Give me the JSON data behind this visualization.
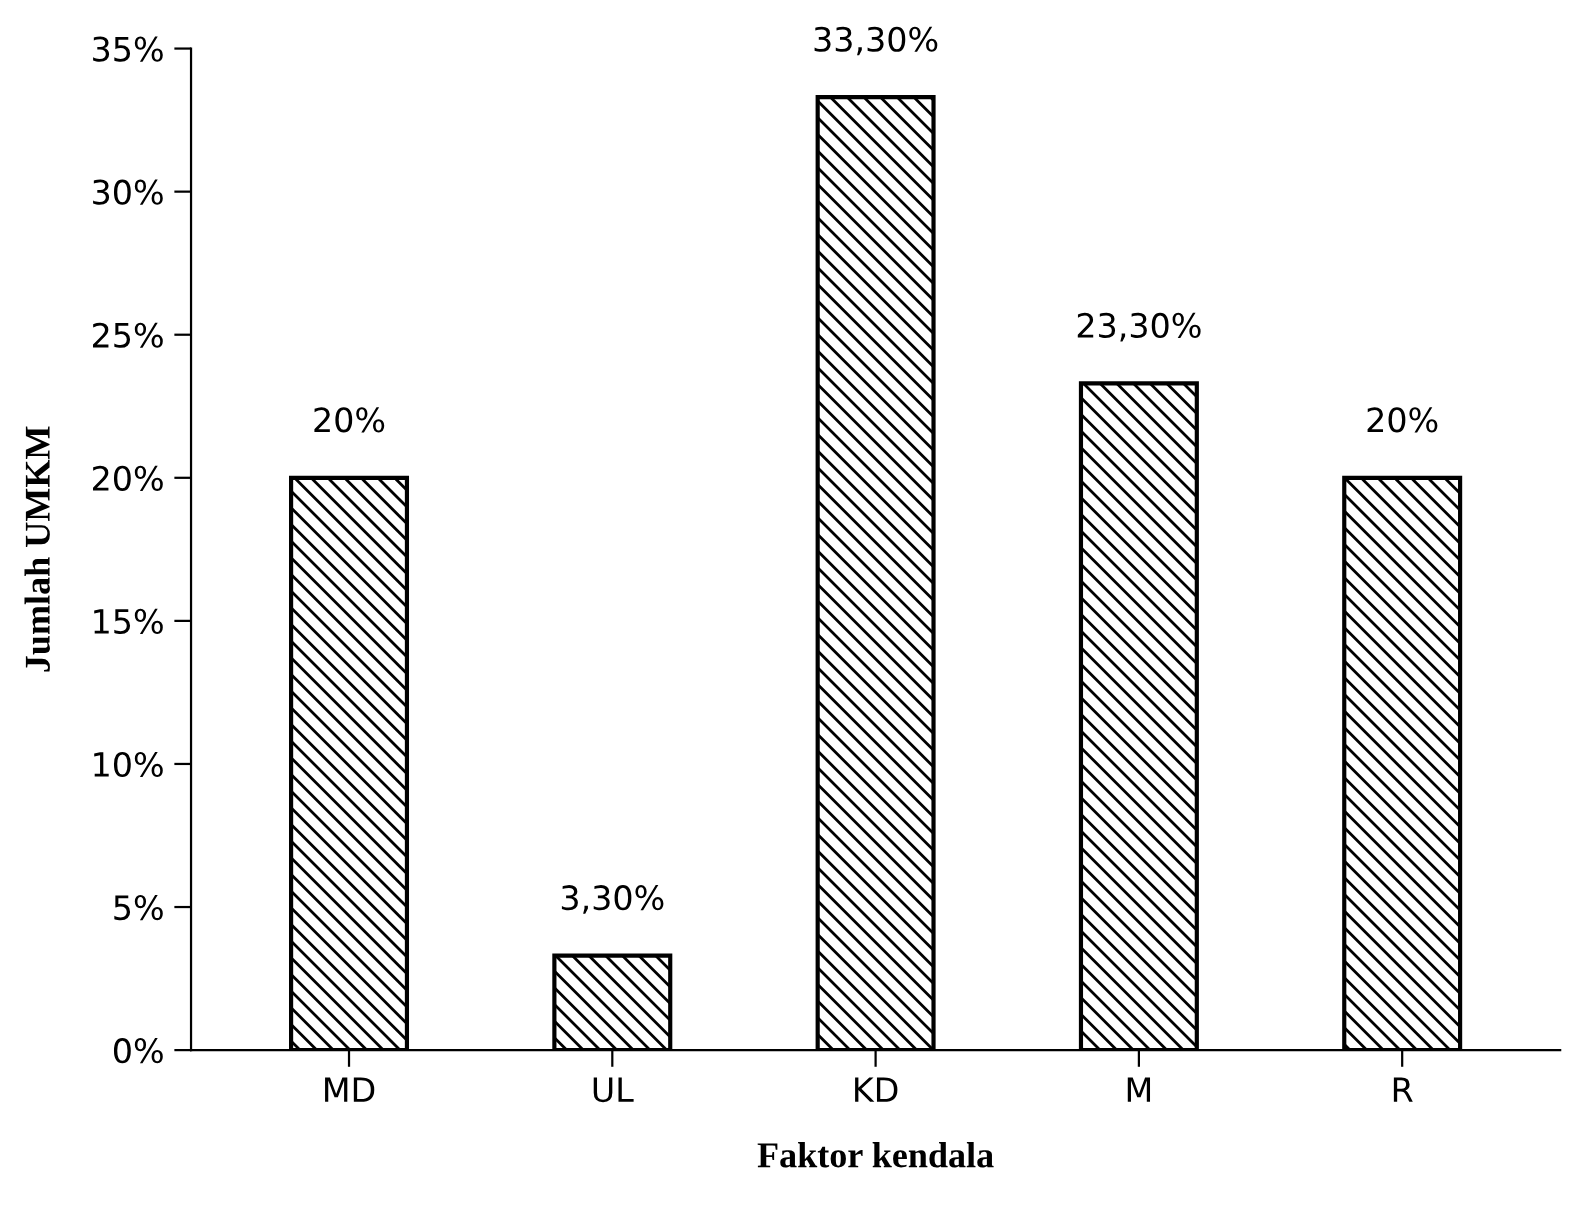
{
  "chart_data": {
    "type": "bar",
    "xlabel": "Faktor kendala",
    "ylabel": "Jumlah UMKM",
    "categories": [
      "MD",
      "UL",
      "KD",
      "M",
      "R"
    ],
    "values": [
      20,
      3.3,
      33.3,
      23.3,
      20
    ],
    "value_labels": [
      "20%",
      "3,30%",
      "33,30%",
      "23,30%",
      "20%"
    ],
    "color": "#000000",
    "ylim": [
      0,
      35
    ],
    "yticks": [
      {
        "value": 0,
        "label": "0%"
      },
      {
        "value": 5,
        "label": "5%"
      },
      {
        "value": 10,
        "label": "10%"
      },
      {
        "value": 15,
        "label": "15%"
      },
      {
        "value": 20,
        "label": "20%"
      },
      {
        "value": 25,
        "label": "25%"
      },
      {
        "value": 30,
        "label": "30%"
      },
      {
        "value": 35,
        "label": "35%"
      }
    ],
    "grid": false,
    "legend": false
  }
}
